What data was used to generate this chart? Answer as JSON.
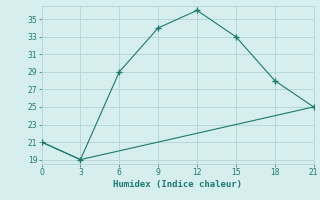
{
  "line1_x": [
    0,
    3,
    6,
    9,
    12,
    15,
    18,
    21
  ],
  "line1_y": [
    21,
    19,
    29,
    34,
    36,
    33,
    28,
    25
  ],
  "line2_x": [
    0,
    3,
    6,
    9,
    12,
    15,
    18,
    21
  ],
  "line2_y": [
    21,
    19,
    20,
    21,
    22,
    23,
    24,
    25
  ],
  "color": "#1a7a6e",
  "xlabel": "Humidex (Indice chaleur)",
  "xlim": [
    0,
    21
  ],
  "ylim": [
    19,
    36
  ],
  "xticks": [
    0,
    3,
    6,
    9,
    12,
    15,
    18,
    21
  ],
  "yticks": [
    19,
    21,
    23,
    25,
    27,
    29,
    31,
    33,
    35
  ],
  "bg_color": "#d6eeee",
  "grid_color": "#b8d8d8"
}
